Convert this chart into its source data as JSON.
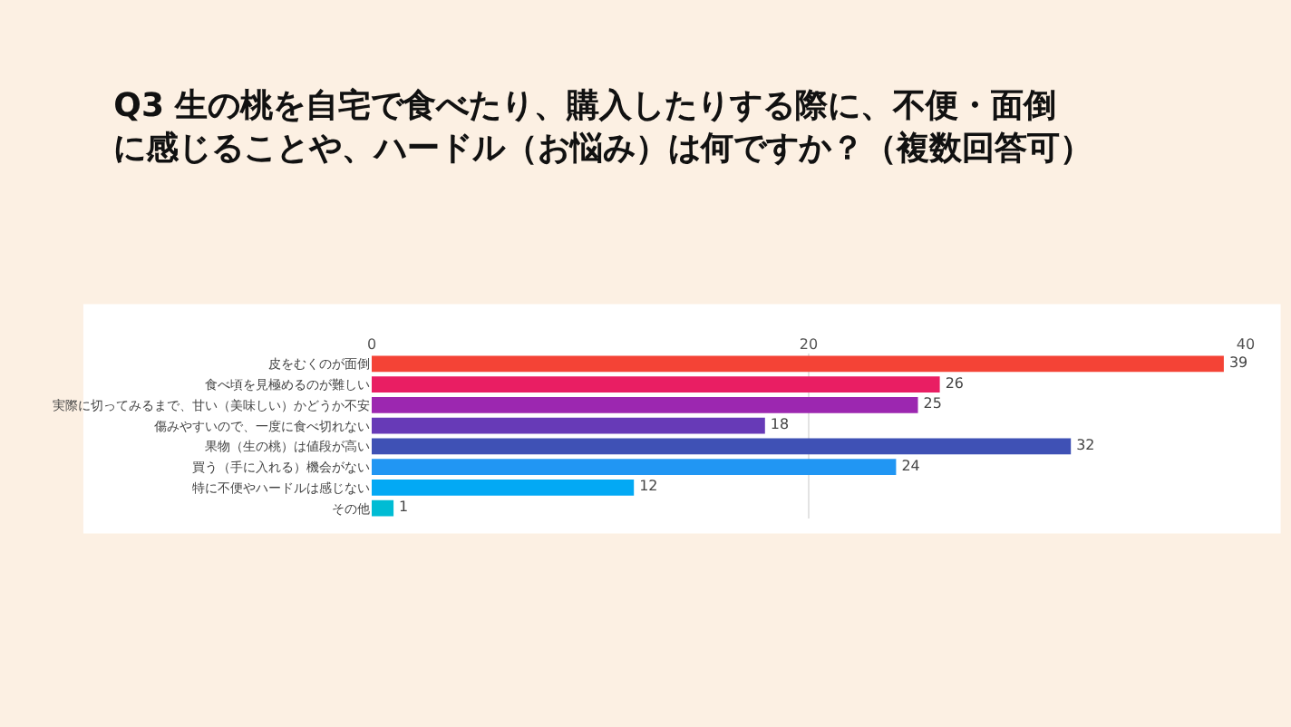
{
  "chart_data": {
    "type": "bar",
    "orientation": "horizontal",
    "title": "Q3 生の桃を自宅で食べたり、購入したりする際に、不便・面倒に感じることや、ハードル（お悩み）は何ですか？（複数回答可）",
    "categories": [
      "皮をむくのが面倒",
      "食べ頃を見極めるのが難しい",
      "実際に切ってみるまで、甘い（美味しい）かどうか不安",
      "傷みやすいので、一度に食べ切れない",
      "果物（生の桃）は値段が高い",
      "買う（手に入れる）機会がない",
      "特に不便やハードルは感じない",
      "その他"
    ],
    "values": [
      39,
      26,
      25,
      18,
      32,
      24,
      12,
      1
    ],
    "colors": [
      "#f44336",
      "#e91e63",
      "#9c27b0",
      "#673ab7",
      "#3f51b5",
      "#2196f3",
      "#03a9f4",
      "#00bcd4"
    ],
    "xlim": [
      0,
      40
    ],
    "xticks": [
      0,
      20,
      40
    ],
    "grid": "x",
    "data_labels": true,
    "legend": false
  }
}
